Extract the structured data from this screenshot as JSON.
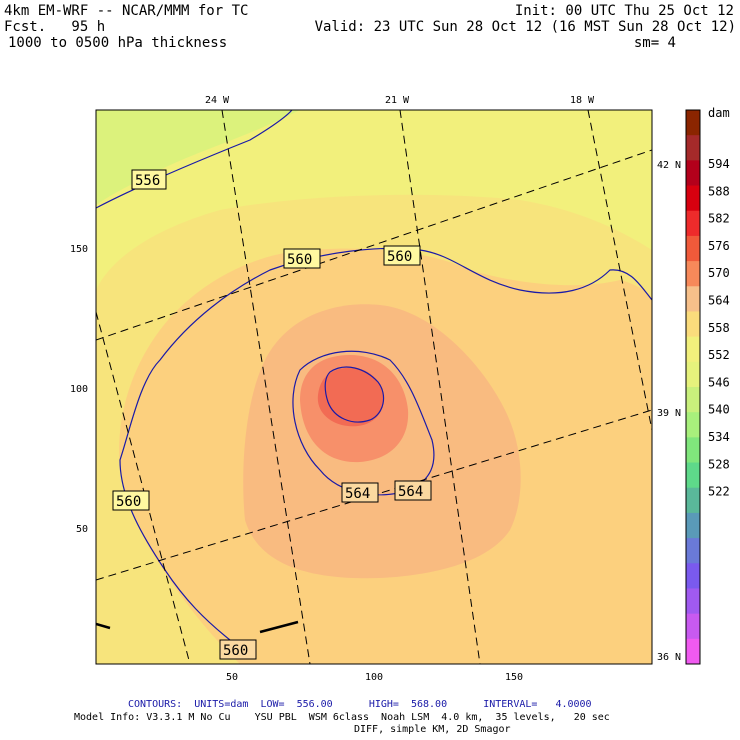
{
  "header": {
    "model": "4km EM-WRF -- NCAR/MMM for TC",
    "forecast": "Fcst.   95 h",
    "field": "1000 to 0500 hPa thickness",
    "init": "Init: 00 UTC Thu 25 Oct 12",
    "valid": "Valid: 23 UTC Sun 28 Oct 12 (16 MST Sun 28 Oct 12)",
    "smoothing": "sm= 4"
  },
  "map": {
    "lon_labels": [
      "24 W",
      "21 W",
      "18 W"
    ],
    "lat_labels": [
      "42 N",
      "39 N",
      "36 N"
    ],
    "x_ticks": [
      "50",
      "100",
      "150"
    ],
    "y_ticks": [
      "150",
      "100",
      "50"
    ],
    "contour_labels": [
      "556",
      "560",
      "560",
      "560",
      "564",
      "564",
      "560"
    ]
  },
  "colorbar": {
    "unit": "dam",
    "levels": [
      "594",
      "588",
      "582",
      "576",
      "570",
      "564",
      "558",
      "552",
      "546",
      "540",
      "534",
      "528",
      "522"
    ],
    "colors": [
      "#8b2500",
      "#a52a2a",
      "#b3001b",
      "#d7000f",
      "#ee2b2b",
      "#f05a3a",
      "#f7895a",
      "#f7c08a",
      "#fbdc7c",
      "#f2f07c",
      "#e6f27c",
      "#c9f07c",
      "#a8f07c",
      "#80e67c",
      "#5ed98a",
      "#5ab89a",
      "#5a9ab8",
      "#6a7ad8",
      "#7a5aee",
      "#a05af0",
      "#c85af0",
      "#f05af0"
    ]
  },
  "footer": {
    "contours": "CONTOURS:  UNITS=dam  LOW=  556.00      HIGH=  568.00      INTERVAL=   4.0000",
    "model_info": "Model Info: V3.3.1 M No Cu    YSU PBL  WSM 6class  Noah LSM  4.0 km,  35 levels,   20 sec",
    "diff": "DIFF, simple KM, 2D Smagor"
  }
}
